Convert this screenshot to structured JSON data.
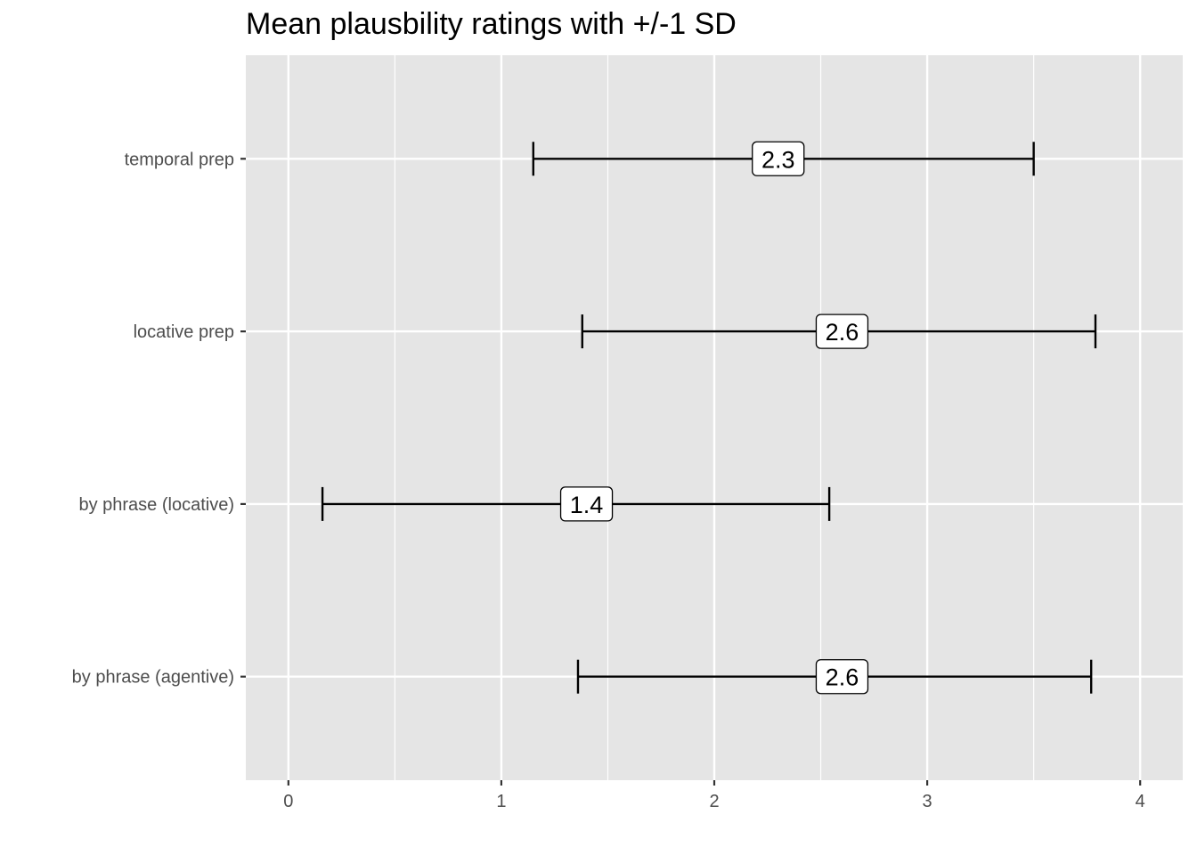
{
  "chart_data": {
    "type": "errorbar",
    "title": "Mean plausbility ratings with +/-1 SD",
    "xlabel": "",
    "ylabel": "",
    "xlim": [
      -0.2,
      4.2
    ],
    "x_ticks": [
      0,
      1,
      2,
      3,
      4
    ],
    "grid": true,
    "legend": "none",
    "background_color": "#e5e5e5",
    "grid_color": "#ffffff",
    "categories": [
      "temporal prep",
      "locative prep",
      "by phrase (locative)",
      "by phrase (agentive)"
    ],
    "series": [
      {
        "points": [
          {
            "category": "temporal prep",
            "mean": 2.3,
            "lower": 1.15,
            "upper": 3.5,
            "label": "2.3"
          },
          {
            "category": "locative prep",
            "mean": 2.6,
            "lower": 1.38,
            "upper": 3.79,
            "label": "2.6"
          },
          {
            "category": "by phrase (locative)",
            "mean": 1.4,
            "lower": 0.16,
            "upper": 2.54,
            "label": "1.4"
          },
          {
            "category": "by phrase (agentive)",
            "mean": 2.6,
            "lower": 1.36,
            "upper": 3.77,
            "label": "2.6"
          }
        ]
      }
    ]
  }
}
